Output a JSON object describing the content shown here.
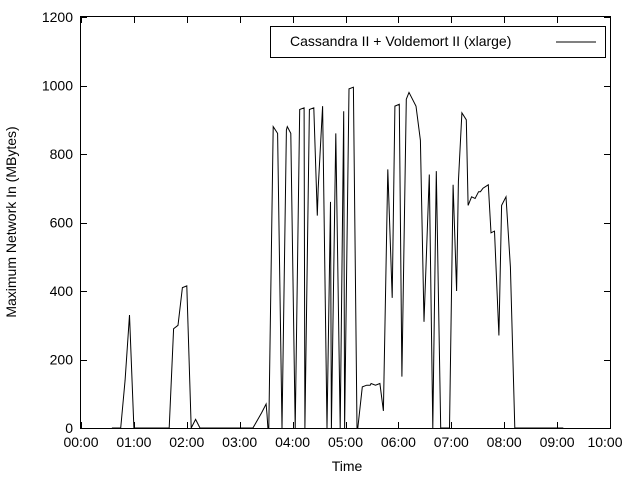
{
  "chart_data": {
    "type": "line",
    "title": "",
    "xlabel": "Time",
    "ylabel": "Maximum Network In (MBytes)",
    "xlim": [
      0,
      600
    ],
    "ylim": [
      0,
      1200
    ],
    "x_tick_values": [
      0,
      60,
      120,
      180,
      240,
      300,
      360,
      420,
      480,
      540,
      600
    ],
    "x_tick_labels": [
      "00:00",
      "01:00",
      "02:00",
      "03:00",
      "04:00",
      "05:00",
      "06:00",
      "07:00",
      "08:00",
      "09:00",
      "10:00"
    ],
    "y_tick_values": [
      0,
      200,
      400,
      600,
      800,
      1000,
      1200
    ],
    "y_tick_labels": [
      "0",
      "200",
      "400",
      "600",
      "800",
      "1000",
      "1200"
    ],
    "grid": false,
    "legend_position": "top-right",
    "series": [
      {
        "name": "Cassandra II + Voldemort II (xlarge)",
        "color": "#000000",
        "x": [
          35,
          45,
          50,
          55,
          60,
          65,
          70,
          75,
          100,
          105,
          110,
          115,
          120,
          125,
          130,
          135,
          190,
          195,
          205,
          210,
          211,
          212,
          213,
          218,
          223,
          228,
          233,
          234,
          238,
          243,
          248,
          253,
          254,
          259,
          264,
          268,
          269,
          274,
          279,
          283,
          284,
          289,
          294,
          298,
          299,
          304,
          309,
          313,
          314,
          319,
          324,
          328,
          329,
          334,
          339,
          343,
          348,
          353,
          356,
          361,
          364,
          369,
          372,
          380,
          385,
          389,
          395,
          399,
          403,
          408,
          413,
          418,
          422,
          426,
          428,
          432,
          437,
          439,
          443,
          447,
          451,
          453,
          456,
          462,
          465,
          469,
          474,
          477,
          482,
          487,
          492,
          497,
          502,
          505,
          511,
          515,
          520,
          525,
          530,
          535,
          540,
          547
        ],
        "y": [
          0,
          0,
          140,
          330,
          0,
          0,
          0,
          0,
          0,
          290,
          300,
          410,
          415,
          0,
          25,
          0,
          0,
          0,
          45,
          70,
          40,
          0,
          0,
          880,
          860,
          0,
          870,
          880,
          860,
          0,
          930,
          935,
          0,
          930,
          935,
          620,
          700,
          940,
          0,
          660,
          0,
          860,
          0,
          925,
          0,
          990,
          995,
          0,
          0,
          120,
          125,
          125,
          130,
          125,
          130,
          50,
          755,
          380,
          940,
          945,
          150,
          960,
          980,
          940,
          840,
          310,
          740,
          0,
          750,
          0,
          0,
          0,
          710,
          400,
          720,
          920,
          900,
          650,
          675,
          670,
          690,
          690,
          700,
          710,
          570,
          575,
          270,
          650,
          675,
          470,
          0,
          0,
          0,
          0,
          0,
          0,
          0,
          0,
          0,
          0,
          0,
          0
        ]
      }
    ]
  }
}
